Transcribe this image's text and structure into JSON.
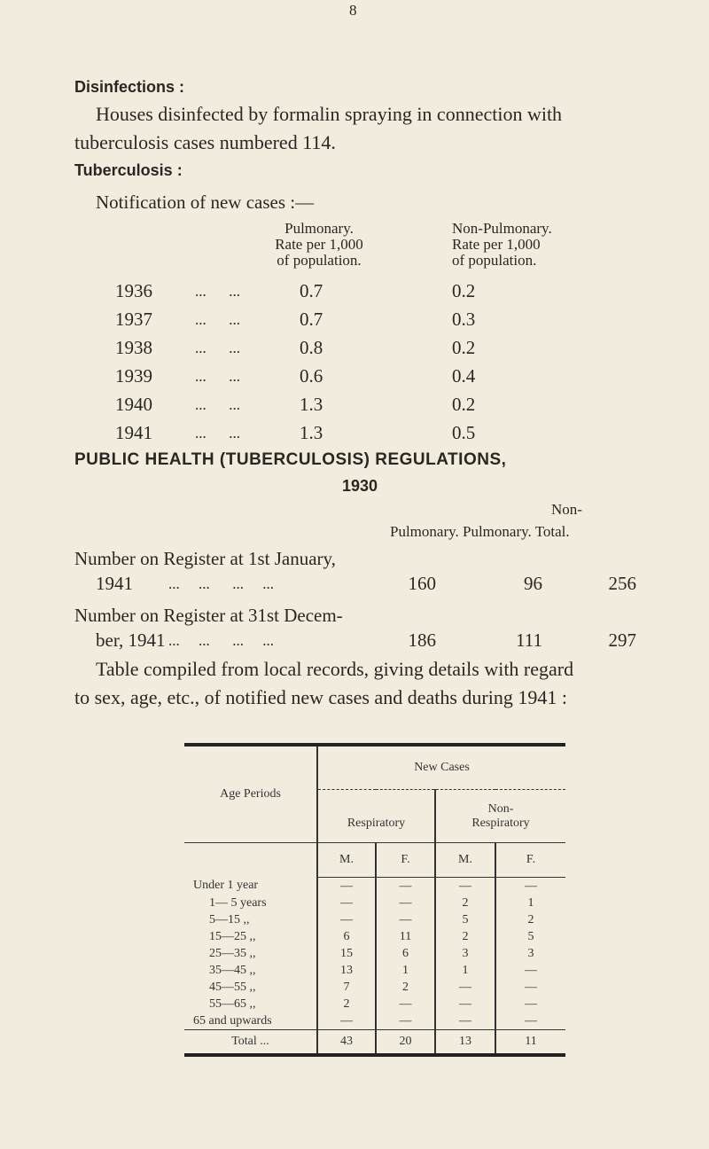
{
  "page_number": "8",
  "disinfections": {
    "heading": "Disinfections :",
    "line1": "Houses disinfected by formalin spraying in connection with",
    "line2": "tuberculosis cases numbered 114."
  },
  "tuberculosis": {
    "heading": "Tuberculosis :",
    "notification": "Notification of new cases :—",
    "col1": [
      "Pulmonary.",
      "Rate per 1,000",
      "of population."
    ],
    "col2": [
      "Non-Pulmonary.",
      "Rate per 1,000",
      "of population."
    ],
    "rows": [
      {
        "year": "1936",
        "pul": "0.7",
        "non": "0.2"
      },
      {
        "year": "1937",
        "pul": "0.7",
        "non": "0.3"
      },
      {
        "year": "1938",
        "pul": "0.8",
        "non": "0.2"
      },
      {
        "year": "1939",
        "pul": "0.6",
        "non": "0.4"
      },
      {
        "year": "1940",
        "pul": "1.3",
        "non": "0.2"
      },
      {
        "year": "1941",
        "pul": "1.3",
        "non": "0.5"
      }
    ]
  },
  "regulations": {
    "heading": "PUBLIC HEALTH (TUBERCULOSIS) REGULATIONS,",
    "year": "1930",
    "h_non": "Non-",
    "h_cols": "Pulmonary. Pulmonary. Total.",
    "reg1_line1": "Number on Register at 1st January,",
    "reg1_line2": "1941",
    "reg1": [
      "160",
      "96",
      "256"
    ],
    "reg2_line1": "Number on Register at 31st Decem-",
    "reg2_line2": "ber, 1941",
    "reg2": [
      "186",
      "111",
      "297"
    ]
  },
  "table_intro": {
    "line1": "Table compiled from local records, giving details with regard",
    "line2": "to sex, age, etc., of notified new cases and deaths during 1941 :"
  },
  "table": {
    "age_header": "Age Periods",
    "new_cases": "New Cases",
    "respiratory": "Respiratory",
    "non_respiratory_1": "Non-",
    "non_respiratory_2": "Respiratory",
    "m": "M.",
    "f": "F.",
    "rows": [
      [
        "Under 1 year",
        "—",
        "—",
        "—",
        "—"
      ],
      [
        "1— 5 years",
        "—",
        "—",
        "2",
        "1"
      ],
      [
        "5—15 ,,",
        "—",
        "—",
        "5",
        "2"
      ],
      [
        "15—25 ,,",
        "6",
        "11",
        "2",
        "5"
      ],
      [
        "25—35 ,,",
        "15",
        "6",
        "3",
        "3"
      ],
      [
        "35—45 ,,",
        "13",
        "1",
        "1",
        "—"
      ],
      [
        "45—55 ,,",
        "7",
        "2",
        "—",
        "—"
      ],
      [
        "55—65 ,,",
        "2",
        "—",
        "—",
        "—"
      ],
      [
        "65 and upwards",
        "—",
        "—",
        "—",
        "—"
      ]
    ],
    "total": [
      "Total ...",
      "43",
      "20",
      "13",
      "11"
    ]
  }
}
